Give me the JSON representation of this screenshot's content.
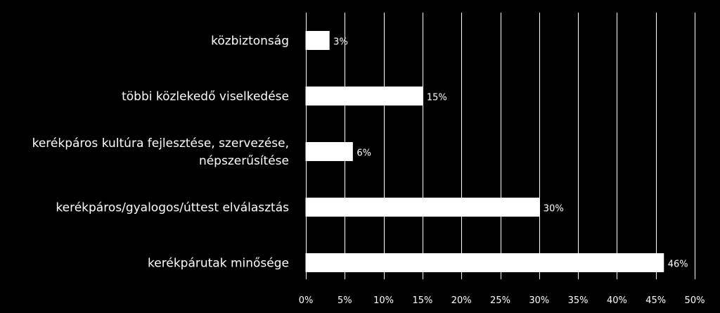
{
  "chart_data": {
    "type": "bar",
    "orientation": "horizontal",
    "categories": [
      [
        "közbiztonság"
      ],
      [
        "többi közlekedő viselkedése"
      ],
      [
        "kerékpáros kultúra fejlesztése, szervezése,",
        "népszerűsítése"
      ],
      [
        "kerékpáros/gyalogos/úttest elválasztás"
      ],
      [
        "kerékpárutak minősége"
      ]
    ],
    "values": [
      3,
      15,
      6,
      30,
      46
    ],
    "value_labels": [
      "3%",
      "15%",
      "6%",
      "30%",
      "46%"
    ],
    "xlim": [
      0,
      50
    ],
    "x_ticks": [
      0,
      5,
      10,
      15,
      20,
      25,
      30,
      35,
      40,
      45,
      50
    ],
    "x_tick_labels": [
      "0%",
      "5%",
      "10%",
      "15%",
      "20%",
      "25%",
      "30%",
      "35%",
      "40%",
      "45%",
      "50%"
    ],
    "grid": true,
    "background_color": "#000000",
    "bar_color": "#ffffff",
    "text_color": "#ffffff"
  }
}
